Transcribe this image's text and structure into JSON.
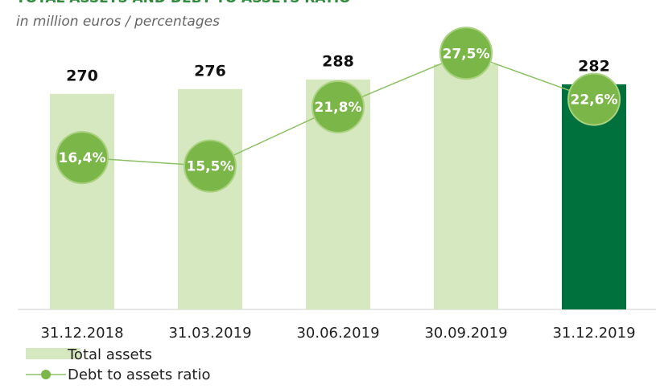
{
  "chart_data": {
    "type": "bar_line",
    "title": "TOTAL ASSETS AND DEBT TO ASSETS RATIO",
    "subtitle": "in million euros / percentages",
    "categories": [
      "31.12.2018",
      "31.03.2019",
      "30.06.2019",
      "30.09.2019",
      "31.12.2019"
    ],
    "series": [
      {
        "name": "Total assets",
        "type": "bar",
        "colors": [
          "#d6e8bf",
          "#d6e8bf",
          "#d6e8bf",
          "#d6e8bf",
          "#00703c"
        ],
        "values": [
          270,
          276,
          288,
          307,
          282
        ]
      },
      {
        "name": "Debt to assets ratio",
        "type": "line",
        "axis": "y2",
        "color": "#7ab648",
        "values": [
          16.4,
          15.5,
          21.8,
          27.5,
          22.6
        ],
        "value_labels": [
          "16,4%",
          "15,5%",
          "21,8%",
          "27,5%",
          "22,6%"
        ]
      }
    ],
    "ylim": [
      0,
      300
    ],
    "y2lim": [
      0,
      30
    ]
  }
}
